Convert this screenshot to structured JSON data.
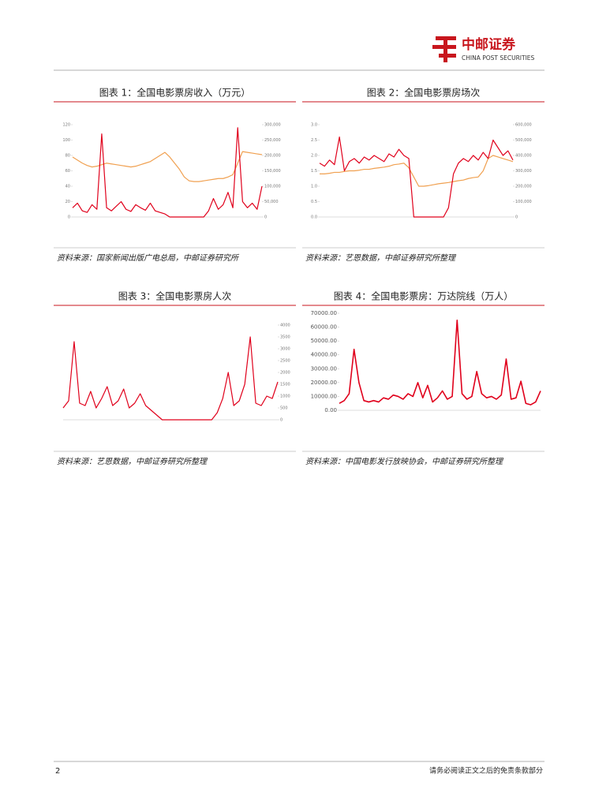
{
  "header": {
    "brand": "中邮证券",
    "brand_en": "CHINA POST SECURITIES"
  },
  "figures": [
    {
      "title": "图表 1：全国电影票房收入（万元）",
      "source": "资料来源：国家新闻出版广电总局，中邮证券研究所",
      "chart": {
        "type": "line",
        "ylim": [
          0,
          120
        ],
        "yticks": [
          0,
          20,
          40,
          60,
          80,
          100,
          120
        ],
        "y2lim": [
          0,
          300000
        ],
        "y2ticks": [
          0,
          {
            "value": 50000,
            "label": "50,000"
          },
          {
            "value": 100000,
            "label": "100,000"
          },
          {
            "value": 150000,
            "label": "150,000"
          },
          {
            "value": 200000,
            "label": "200,000"
          },
          {
            "value": 250000,
            "label": "250,000"
          },
          {
            "value": 300000,
            "label": "300,000"
          }
        ],
        "series": [
          {
            "color": "#f0a050",
            "values": [
              78,
              74,
              70,
              67,
              65,
              66,
              68,
              70,
              69,
              68,
              67,
              66,
              65,
              66,
              68,
              70,
              72,
              76,
              80,
              84,
              78,
              70,
              62,
              52,
              47,
              46,
              46,
              47,
              48,
              49,
              50,
              50,
              52,
              55,
              70,
              85,
              84,
              83,
              82,
              81
            ]
          },
          {
            "color": "#e0001b",
            "axis": "y2",
            "values": [
              30000,
              45000,
              20000,
              15000,
              40000,
              25000,
              270000,
              30000,
              20000,
              35000,
              50000,
              25000,
              18000,
              40000,
              30000,
              22000,
              45000,
              20000,
              15000,
              10000,
              0,
              0,
              0,
              0,
              0,
              0,
              0,
              0,
              20000,
              60000,
              25000,
              40000,
              80000,
              30000,
              290000,
              50000,
              30000,
              45000,
              25000,
              100000
            ]
          }
        ]
      }
    },
    {
      "title": "图表 2：全国电影票房场次",
      "source": "资料来源：艺恩数据，中邮证券研究所整理",
      "chart": {
        "type": "line",
        "ylim": [
          0,
          3
        ],
        "yticks": [
          {
            "value": 0,
            "label": "0.0"
          },
          0.5,
          {
            "value": 1,
            "label": "1.0"
          },
          1.5,
          {
            "value": 2,
            "label": "2.0"
          },
          2.5,
          {
            "value": 3,
            "label": "3.0"
          }
        ],
        "y2lim": [
          0,
          600000
        ],
        "y2ticks": [
          0,
          {
            "value": 100000,
            "label": "100,000"
          },
          {
            "value": 200000,
            "label": "200,000"
          },
          {
            "value": 300000,
            "label": "300,000"
          },
          {
            "value": 400000,
            "label": "400,000"
          },
          {
            "value": 500000,
            "label": "500,000"
          },
          {
            "value": 600000,
            "label": "600,000"
          }
        ],
        "series": [
          {
            "color": "#f0a050",
            "values": [
              1.4,
              1.4,
              1.42,
              1.45,
              1.45,
              1.48,
              1.5,
              1.5,
              1.52,
              1.55,
              1.55,
              1.58,
              1.6,
              1.62,
              1.65,
              1.7,
              1.72,
              1.75,
              1.6,
              1.3,
              1.0,
              1.0,
              1.02,
              1.05,
              1.08,
              1.1,
              1.12,
              1.15,
              1.18,
              1.2,
              1.25,
              1.28,
              1.3,
              1.5,
              1.9,
              2.0,
              1.95,
              1.9,
              1.85,
              1.8
            ]
          },
          {
            "color": "#e0001b",
            "axis": "y2",
            "values": [
              350000,
              330000,
              370000,
              340000,
              520000,
              300000,
              360000,
              380000,
              350000,
              390000,
              370000,
              400000,
              380000,
              360000,
              410000,
              390000,
              440000,
              400000,
              380000,
              0,
              0,
              0,
              0,
              0,
              0,
              0,
              60000,
              280000,
              350000,
              380000,
              360000,
              400000,
              370000,
              420000,
              380000,
              500000,
              450000,
              400000,
              430000,
              370000
            ]
          }
        ]
      }
    },
    {
      "title": "图表 3：全国电影票房人次",
      "source": "资料来源：艺恩数据，中邮证券研究所整理",
      "chart": {
        "type": "line",
        "y2lim": [
          0,
          4000
        ],
        "y2ticks": [
          0,
          500,
          1000,
          1500,
          2000,
          2500,
          3000,
          3500,
          4000
        ],
        "series": [
          {
            "color": "#e0001b",
            "axis": "y2",
            "values": [
              500,
              800,
              3300,
              700,
              600,
              1200,
              500,
              900,
              1400,
              600,
              800,
              1300,
              500,
              700,
              1100,
              600,
              400,
              200,
              0,
              0,
              0,
              0,
              0,
              0,
              0,
              0,
              0,
              0,
              300,
              900,
              2000,
              600,
              800,
              1500,
              3500,
              700,
              600,
              1000,
              900,
              1600
            ]
          }
        ]
      }
    },
    {
      "title": "图表 4：全国电影票房：万达院线（万人）",
      "source": "资料来源：中国电影发行放映协会，中邮证券研究所整理",
      "chart": {
        "type": "line",
        "ylim": [
          0,
          70000
        ],
        "yticks": [
          {
            "value": 0,
            "label": "0.00"
          },
          {
            "value": 10000,
            "label": "10000.00"
          },
          {
            "value": 20000,
            "label": "20000.00"
          },
          {
            "value": 30000,
            "label": "30000.00"
          },
          {
            "value": 40000,
            "label": "40000.00"
          },
          {
            "value": 50000,
            "label": "50000.00"
          },
          {
            "value": 60000,
            "label": "60000.00"
          },
          {
            "value": 70000,
            "label": "70000.00"
          }
        ],
        "series": [
          {
            "color": "#e0001b",
            "values": [
              5000,
              7000,
              12000,
              44000,
              20000,
              7000,
              6000,
              7000,
              6000,
              9000,
              8000,
              11000,
              10000,
              8000,
              12000,
              10000,
              20000,
              9000,
              18000,
              6000,
              9000,
              14000,
              8000,
              10000,
              65000,
              12000,
              8000,
              10000,
              28000,
              12000,
              9000,
              10000,
              8000,
              11000,
              37000,
              8000,
              9000,
              21000,
              5000,
              4000,
              6000,
              14000
            ]
          }
        ]
      }
    }
  ],
  "footer": {
    "page": "2",
    "disclaimer": "请务必阅读正文之后的免责条款部分"
  }
}
